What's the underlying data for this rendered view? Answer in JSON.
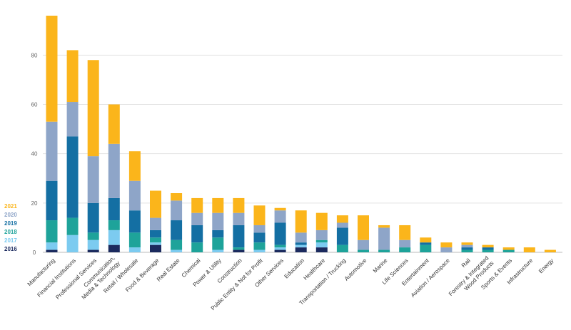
{
  "chart_data": {
    "type": "bar",
    "stacked": true,
    "categories": [
      "Manufacturing",
      "Financial Institutions",
      "Professional Services",
      "Communication, Media & Technology",
      "Retail / Wholesale",
      "Food & Beverage",
      "Real Estate",
      "Chemical",
      "Power & Utility",
      "Construction",
      "Public Entity & Not for Profit",
      "Other Services",
      "Education",
      "Healthcare",
      "Transportation / Trucking",
      "Automotive",
      "Marine",
      "Life Sciences",
      "Entertainment",
      "Aviation / Aerospace",
      "Rail",
      "Forestry & Integrated Wood Products",
      "Sports & Events",
      "Infrastructure",
      "Energy"
    ],
    "category_lines": [
      [
        "Manufacturing"
      ],
      [
        "Financial Institutions"
      ],
      [
        "Professional Services"
      ],
      [
        "Communication,",
        "Media & Technology"
      ],
      [
        "Retail / Wholesale"
      ],
      [
        "Food & Beverage"
      ],
      [
        "Real Estate"
      ],
      [
        "Chemical"
      ],
      [
        "Power & Utility"
      ],
      [
        "Construction"
      ],
      [
        "Public Entity & Not for Profit"
      ],
      [
        "Other Services"
      ],
      [
        "Education"
      ],
      [
        "Healthcare"
      ],
      [
        "Transportation / Trucking"
      ],
      [
        "Automotive"
      ],
      [
        "Marine"
      ],
      [
        "Life Sciences"
      ],
      [
        "Entertainment"
      ],
      [
        "Aviation / Aerospace"
      ],
      [
        "Rail"
      ],
      [
        "Forestry & Integrated",
        "Wood Products"
      ],
      [
        "Sports & Events"
      ],
      [
        "Infrastructure"
      ],
      [
        "Energy"
      ]
    ],
    "series": [
      {
        "name": "2016",
        "color": "#1b2a5e",
        "values": [
          1,
          0,
          1,
          3,
          0,
          3,
          0,
          0,
          0,
          1,
          0,
          1,
          2,
          2,
          0,
          0,
          0,
          0,
          0,
          0,
          0,
          0,
          0,
          0,
          0
        ]
      },
      {
        "name": "2017",
        "color": "#7ccbf0",
        "values": [
          3,
          7,
          4,
          6,
          2,
          1,
          1,
          0,
          1,
          0,
          1,
          1,
          1,
          2,
          0,
          0,
          0,
          0,
          0,
          0,
          0,
          0,
          0,
          0,
          0
        ]
      },
      {
        "name": "2018",
        "color": "#1ea39a",
        "values": [
          9,
          7,
          3,
          4,
          6,
          2,
          4,
          4,
          5,
          1,
          3,
          1,
          0,
          1,
          3,
          1,
          1,
          2,
          3,
          0,
          1,
          1,
          1,
          0,
          0
        ]
      },
      {
        "name": "2019",
        "color": "#146fa3",
        "values": [
          16,
          33,
          12,
          9,
          9,
          3,
          8,
          7,
          3,
          9,
          4,
          9,
          1,
          0,
          7,
          0,
          0,
          0,
          1,
          0,
          1,
          1,
          0,
          0,
          0
        ]
      },
      {
        "name": "2020",
        "color": "#8ea5c8",
        "values": [
          24,
          14,
          19,
          22,
          12,
          5,
          8,
          5,
          7,
          5,
          3,
          5,
          4,
          4,
          2,
          4,
          9,
          3,
          0,
          2,
          1,
          0,
          0,
          0,
          0
        ]
      },
      {
        "name": "2021",
        "color": "#fbb51b",
        "values": [
          43,
          21,
          39,
          16,
          12,
          11,
          3,
          6,
          6,
          6,
          8,
          1,
          9,
          7,
          3,
          10,
          1,
          6,
          2,
          2,
          1,
          1,
          1,
          2,
          1
        ]
      }
    ],
    "y_ticks": [
      0,
      20,
      40,
      60,
      80
    ],
    "ylim": [
      0,
      96
    ],
    "grid": true,
    "legend_position": "left",
    "title": "",
    "xlabel": "",
    "ylabel": ""
  }
}
